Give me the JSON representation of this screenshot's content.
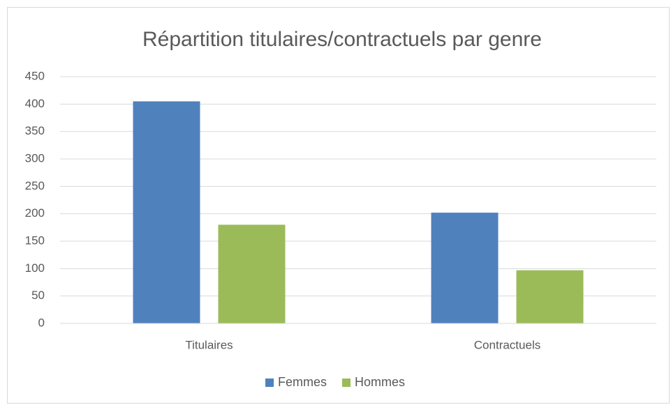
{
  "chart_data": {
    "type": "bar",
    "title": "Répartition titulaires/contractuels par genre",
    "categories": [
      "Titulaires",
      "Contractuels"
    ],
    "series": [
      {
        "name": "Femmes",
        "color": "#4f81bd",
        "values": [
          405,
          202
        ]
      },
      {
        "name": "Hommes",
        "color": "#9bbb59",
        "values": [
          180,
          97
        ]
      }
    ],
    "ylim": [
      0,
      450
    ],
    "yticks": [
      0,
      50,
      100,
      150,
      200,
      250,
      300,
      350,
      400,
      450
    ],
    "grid": true,
    "legend": "bottom"
  }
}
